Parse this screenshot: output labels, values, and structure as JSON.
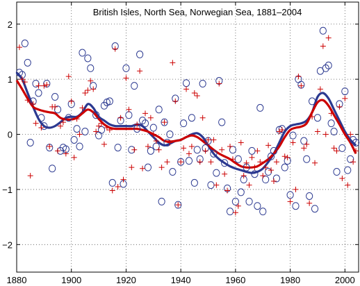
{
  "chart_data": {
    "type": "scatter",
    "title": "British Isles, North Sea, Norwegian Sea, 1881–2004",
    "xlabel": "",
    "ylabel": "",
    "xlim": [
      1880,
      2005
    ],
    "ylim": [
      -2.5,
      2.4
    ],
    "x_ticks": [
      1880,
      1900,
      1920,
      1940,
      1960,
      1980,
      2000
    ],
    "y_ticks": [
      2,
      1,
      0,
      -1,
      -2
    ],
    "y_tick_labels": [
      "2",
      "1",
      "0",
      "−1",
      "−2"
    ],
    "grid": true,
    "colors": {
      "circles": "#2b3990",
      "plus": "#cc0000"
    },
    "series": [
      {
        "marker": "circle",
        "x": [
          1881,
          1882,
          1883,
          1884,
          1885,
          1886,
          1887,
          1888,
          1889,
          1890,
          1891,
          1892,
          1893,
          1894,
          1895,
          1896,
          1897,
          1898,
          1899,
          1900,
          1901,
          1902,
          1903,
          1904,
          1905,
          1906,
          1907,
          1908,
          1909,
          1910,
          1911,
          1912,
          1913,
          1914,
          1915,
          1916,
          1917,
          1918,
          1919,
          1920,
          1921,
          1922,
          1923,
          1924,
          1925,
          1926,
          1927,
          1928,
          1929,
          1930,
          1931,
          1932,
          1933,
          1934,
          1935,
          1936,
          1937,
          1938,
          1939,
          1940,
          1941,
          1942,
          1943,
          1944,
          1945,
          1946,
          1947,
          1948,
          1949,
          1950,
          1951,
          1952,
          1953,
          1954,
          1955,
          1956,
          1957,
          1958,
          1959,
          1960,
          1961,
          1962,
          1963,
          1964,
          1965,
          1966,
          1967,
          1968,
          1969,
          1970,
          1971,
          1972,
          1973,
          1974,
          1975,
          1976,
          1977,
          1978,
          1979,
          1980,
          1981,
          1982,
          1983,
          1984,
          1985,
          1986,
          1987,
          1988,
          1989,
          1990,
          1991,
          1992,
          1993,
          1994,
          1995,
          1996,
          1997,
          1998,
          1999,
          2000,
          2001,
          2002,
          2003,
          2004
        ],
        "values": [
          1.12,
          1.08,
          1.65,
          1.3,
          -0.15,
          0.6,
          0.92,
          0.75,
          0.3,
          0.15,
          0.92,
          -0.24,
          -0.62,
          0.68,
          0.45,
          -0.3,
          -0.24,
          -0.27,
          0.3,
          0.55,
          -0.1,
          0.1,
          -0.22,
          1.48,
          0.05,
          1.38,
          1.2,
          0.88,
          0.35,
          -0.02,
          0.08,
          0.52,
          0.58,
          0.6,
          -0.88,
          1.6,
          -0.24,
          0.25,
          -0.9,
          1.2,
          0.35,
          -0.28,
          0.88,
          0.1,
          1.45,
          0.25,
          0.2,
          -0.6,
          -0.3,
          0.12,
          -0.22,
          0.45,
          -1.22,
          0.22,
          -0.15,
          0.0,
          -0.68,
          0.65,
          -1.28,
          -0.5,
          0.2,
          0.93,
          -0.48,
          0.3,
          -0.88,
          -0.28,
          -0.45,
          0.92,
          -0.25,
          -0.12,
          -0.92,
          -0.35,
          -0.7,
          0.97,
          0.22,
          -0.52,
          -0.98,
          -1.4,
          -0.28,
          -1.22,
          -0.45,
          -1.05,
          -0.82,
          -0.6,
          -1.22,
          -0.3,
          -0.72,
          -1.3,
          0.48,
          -1.4,
          -0.82,
          -0.68,
          -0.4,
          -0.3,
          -0.8,
          0.08,
          0.1,
          -0.6,
          -0.48,
          -1.1,
          -0.02,
          -1.3,
          1.0,
          0.9,
          -0.12,
          -0.45,
          -1.12,
          0.6,
          -1.35,
          0.3,
          1.15,
          1.88,
          1.2,
          1.25,
          0.2,
          0.05,
          -0.68,
          0.55,
          -0.25,
          0.78,
          -0.65,
          -0.45,
          -0.1,
          -0.15
        ]
      },
      {
        "marker": "plus",
        "x": [
          1881,
          1882,
          1883,
          1884,
          1885,
          1886,
          1887,
          1888,
          1889,
          1890,
          1891,
          1892,
          1893,
          1894,
          1895,
          1896,
          1897,
          1898,
          1899,
          1900,
          1901,
          1902,
          1903,
          1904,
          1905,
          1906,
          1907,
          1908,
          1909,
          1910,
          1911,
          1912,
          1913,
          1914,
          1915,
          1916,
          1917,
          1918,
          1919,
          1920,
          1921,
          1922,
          1923,
          1924,
          1925,
          1926,
          1927,
          1928,
          1929,
          1930,
          1931,
          1932,
          1933,
          1934,
          1935,
          1936,
          1937,
          1938,
          1939,
          1940,
          1941,
          1942,
          1943,
          1944,
          1945,
          1946,
          1947,
          1948,
          1949,
          1950,
          1951,
          1952,
          1953,
          1954,
          1955,
          1956,
          1957,
          1958,
          1959,
          1960,
          1961,
          1962,
          1963,
          1964,
          1965,
          1966,
          1967,
          1968,
          1969,
          1970,
          1971,
          1972,
          1973,
          1974,
          1975,
          1976,
          1977,
          1978,
          1979,
          1980,
          1981,
          1982,
          1983,
          1984,
          1985,
          1986,
          1987,
          1988,
          1989,
          1990,
          1991,
          1992,
          1993,
          1994,
          1995,
          1996,
          1997,
          1998,
          1999,
          2000,
          2001,
          2002,
          2003,
          2004
        ],
        "values": [
          1.58,
          1.0,
          0.95,
          0.62,
          -0.75,
          0.55,
          0.2,
          0.88,
          0.12,
          0.88,
          0.9,
          -0.22,
          0.5,
          0.5,
          -0.3,
          0.15,
          0.22,
          -0.35,
          1.05,
          0.6,
          -0.42,
          0.28,
          0.0,
          0.48,
          0.75,
          0.8,
          0.97,
          0.82,
          0.05,
          0.15,
          0.2,
          -0.18,
          0.12,
          0.08,
          -1.02,
          1.55,
          -0.95,
          0.3,
          -0.82,
          1.02,
          0.45,
          -0.6,
          -0.28,
          0.18,
          1.15,
          -0.62,
          0.38,
          -0.22,
          0.3,
          0.0,
          -0.12,
          -0.28,
          -0.6,
          0.22,
          -0.5,
          -0.15,
          1.3,
          0.6,
          -1.28,
          -0.5,
          -0.25,
          0.82,
          -0.35,
          -0.22,
          0.75,
          0.7,
          -0.5,
          0.3,
          -0.3,
          -0.1,
          -0.5,
          -0.1,
          -0.92,
          0.92,
          -0.28,
          -0.72,
          -1.02,
          -0.22,
          -0.45,
          -1.42,
          -1.3,
          -0.15,
          -0.75,
          -0.52,
          -0.92,
          -0.42,
          -0.6,
          -0.3,
          -0.5,
          -0.75,
          -0.6,
          -0.2,
          -0.65,
          -0.85,
          -0.5,
          0.05,
          0.08,
          -0.4,
          -0.42,
          -1.22,
          -0.15,
          -1.0,
          1.05,
          0.88,
          -0.25,
          -0.18,
          -1.25,
          0.32,
          -0.52,
          0.05,
          0.82,
          1.6,
          0.0,
          1.75,
          0.38,
          -0.25,
          -0.3,
          0.5,
          -0.8,
          0.65,
          -0.92,
          0.0,
          -0.5,
          -0.3
        ]
      },
      {
        "line": true,
        "x": [
          1880,
          1882,
          1884,
          1886,
          1888,
          1890,
          1892,
          1894,
          1896,
          1898,
          1900,
          1902,
          1904,
          1906,
          1908,
          1910,
          1912,
          1914,
          1916,
          1918,
          1920,
          1922,
          1924,
          1926,
          1928,
          1930,
          1932,
          1934,
          1936,
          1938,
          1940,
          1942,
          1944,
          1946,
          1948,
          1950,
          1952,
          1954,
          1956,
          1958,
          1960,
          1962,
          1964,
          1966,
          1968,
          1970,
          1972,
          1974,
          1976,
          1978,
          1980,
          1982,
          1984,
          1986,
          1988,
          1990,
          1992,
          1994,
          1996,
          1998,
          2000,
          2002,
          2004
        ],
        "values": [
          1.12,
          1.0,
          0.75,
          0.5,
          0.28,
          0.15,
          0.12,
          0.15,
          0.22,
          0.3,
          0.32,
          0.32,
          0.4,
          0.55,
          0.48,
          0.32,
          0.25,
          0.18,
          0.15,
          0.15,
          0.15,
          0.15,
          0.18,
          0.15,
          0.05,
          -0.05,
          -0.15,
          -0.2,
          -0.17,
          -0.12,
          -0.1,
          -0.05,
          0.0,
          0.02,
          -0.05,
          -0.2,
          -0.35,
          -0.45,
          -0.52,
          -0.58,
          -0.62,
          -0.65,
          -0.68,
          -0.7,
          -0.68,
          -0.62,
          -0.5,
          -0.35,
          -0.15,
          0.05,
          0.15,
          0.18,
          0.2,
          0.25,
          0.4,
          0.68,
          0.75,
          0.65,
          0.45,
          0.25,
          0.05,
          -0.1,
          -0.2
        ]
      },
      {
        "line": true,
        "x": [
          1880,
          1882,
          1884,
          1886,
          1888,
          1890,
          1892,
          1894,
          1896,
          1898,
          1900,
          1902,
          1904,
          1906,
          1908,
          1910,
          1912,
          1914,
          1916,
          1918,
          1920,
          1922,
          1924,
          1926,
          1928,
          1930,
          1932,
          1934,
          1936,
          1938,
          1940,
          1942,
          1944,
          1946,
          1948,
          1950,
          1952,
          1954,
          1956,
          1958,
          1960,
          1962,
          1964,
          1966,
          1968,
          1970,
          1972,
          1974,
          1976,
          1978,
          1980,
          1982,
          1984,
          1986,
          1988,
          1990,
          1992,
          1994,
          1996,
          1998,
          2000,
          2002,
          2004
        ],
        "values": [
          0.98,
          0.82,
          0.65,
          0.5,
          0.45,
          0.42,
          0.4,
          0.38,
          0.3,
          0.27,
          0.27,
          0.3,
          0.38,
          0.45,
          0.4,
          0.28,
          0.18,
          0.12,
          0.1,
          0.1,
          0.1,
          0.1,
          0.1,
          0.08,
          0.05,
          0.0,
          -0.05,
          -0.12,
          -0.13,
          -0.12,
          -0.1,
          -0.05,
          -0.02,
          -0.05,
          -0.12,
          -0.2,
          -0.28,
          -0.35,
          -0.4,
          -0.45,
          -0.52,
          -0.58,
          -0.6,
          -0.6,
          -0.58,
          -0.52,
          -0.45,
          -0.35,
          -0.22,
          -0.05,
          0.08,
          0.12,
          0.14,
          0.2,
          0.4,
          0.58,
          0.62,
          0.52,
          0.35,
          0.18,
          0.0,
          -0.15,
          -0.35
        ]
      }
    ]
  }
}
